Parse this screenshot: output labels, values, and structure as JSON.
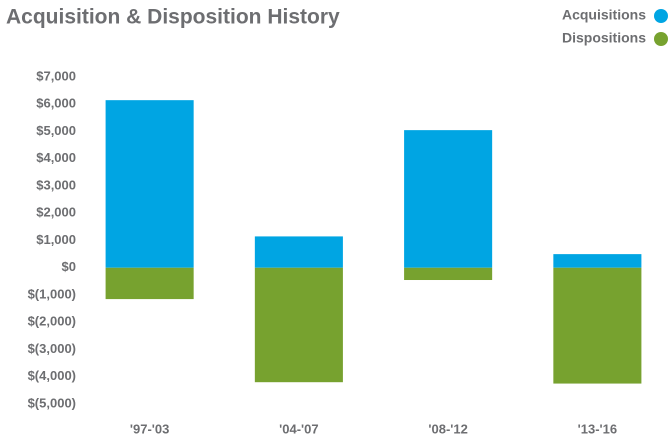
{
  "chart_data": {
    "type": "bar",
    "title": "Acquisition & Disposition History",
    "categories": [
      "'97-'03",
      "'04-'07",
      "'08-'12",
      "'13-'16"
    ],
    "series": [
      {
        "name": "Acquisitions",
        "color": "#00a5e3",
        "values": [
          6150,
          1150,
          5050,
          500
        ]
      },
      {
        "name": "Dispositions",
        "color": "#77a22f",
        "values": [
          -1150,
          -4200,
          -450,
          -4250
        ]
      }
    ],
    "ylim": [
      -5000,
      7000
    ],
    "yticks": [
      {
        "value": 7000,
        "label": "$7,000"
      },
      {
        "value": 6000,
        "label": "$6,000"
      },
      {
        "value": 5000,
        "label": "$5,000"
      },
      {
        "value": 4000,
        "label": "$4,000"
      },
      {
        "value": 3000,
        "label": "$3,000"
      },
      {
        "value": 2000,
        "label": "$2,000"
      },
      {
        "value": 1000,
        "label": "$1,000"
      },
      {
        "value": 0,
        "label": "$0"
      },
      {
        "value": -1000,
        "label": "$(1,000)"
      },
      {
        "value": -2000,
        "label": "$(2,000)"
      },
      {
        "value": -3000,
        "label": "$(3,000)"
      },
      {
        "value": -4000,
        "label": "$(4,000)"
      },
      {
        "value": -5000,
        "label": "$(5,000)"
      }
    ],
    "grid": false,
    "legend": "top-right"
  }
}
